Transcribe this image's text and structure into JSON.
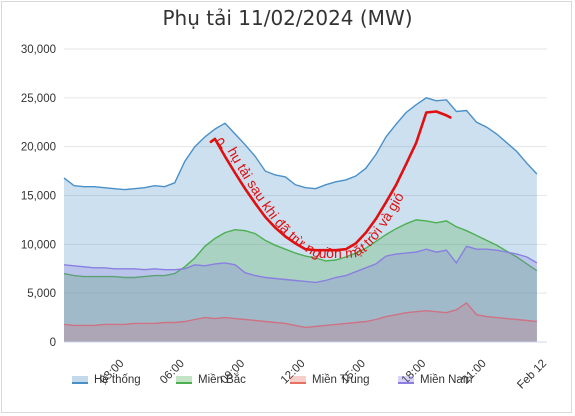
{
  "chart_data": {
    "type": "area",
    "title": "Phụ tải 11/02/2024 (MW)",
    "xlabel": "",
    "ylabel": "",
    "ylim": [
      0,
      30000
    ],
    "y_ticks": [
      "0",
      "5,000",
      "10,000",
      "15,000",
      "20,000",
      "25,000",
      "30,000"
    ],
    "x_ticks": [
      "03:00",
      "06:00",
      "09:00",
      "12:00",
      "15:00",
      "18:00",
      "21:00",
      "Feb 12"
    ],
    "x_tick_hours": [
      3,
      6,
      9,
      12,
      15,
      18,
      21,
      24
    ],
    "x_range_hours": [
      0,
      24
    ],
    "x_hours": [
      0,
      0.5,
      1,
      1.5,
      2,
      2.5,
      3,
      3.5,
      4,
      4.5,
      5,
      5.5,
      6,
      6.5,
      7,
      7.5,
      8,
      8.5,
      9,
      9.5,
      10,
      10.5,
      11,
      11.5,
      12,
      12.5,
      13,
      13.5,
      14,
      14.5,
      15,
      15.5,
      16,
      16.5,
      17,
      17.5,
      18,
      18.5,
      19,
      19.5,
      20,
      20.5,
      21,
      21.5,
      22,
      22.5,
      23,
      23.5
    ],
    "series": [
      {
        "name": "Hệ thống",
        "color": "#4a90c8",
        "values": [
          16800,
          16000,
          15900,
          15900,
          15800,
          15700,
          15600,
          15700,
          15800,
          16000,
          15900,
          16300,
          18500,
          20000,
          21000,
          21800,
          22400,
          21300,
          20200,
          19000,
          17500,
          17100,
          16900,
          16100,
          15800,
          15700,
          16100,
          16400,
          16600,
          17000,
          17800,
          19200,
          21000,
          22300,
          23500,
          24300,
          25000,
          24700,
          24800,
          23600,
          23700,
          22500,
          22000,
          21300,
          20400,
          19500,
          18300,
          17200
        ]
      },
      {
        "name": "Miền Bắc",
        "color": "#4caf50",
        "values": [
          7000,
          6800,
          6700,
          6700,
          6700,
          6700,
          6600,
          6600,
          6700,
          6800,
          6800,
          7000,
          7700,
          8600,
          9800,
          10600,
          11200,
          11500,
          11400,
          11100,
          10400,
          9900,
          9500,
          9100,
          8800,
          8600,
          8300,
          8400,
          8700,
          9100,
          9600,
          10300,
          11000,
          11600,
          12100,
          12500,
          12400,
          12200,
          12400,
          11800,
          11400,
          10900,
          10400,
          9900,
          9300,
          8700,
          8000,
          7300
        ]
      },
      {
        "name": "Miền Trung",
        "color": "#e87060",
        "values": [
          1800,
          1700,
          1700,
          1700,
          1800,
          1800,
          1800,
          1900,
          1900,
          1900,
          2000,
          2000,
          2100,
          2300,
          2500,
          2400,
          2500,
          2400,
          2300,
          2200,
          2100,
          2000,
          1900,
          1700,
          1500,
          1600,
          1700,
          1800,
          1900,
          2000,
          2100,
          2300,
          2600,
          2800,
          3000,
          3100,
          3200,
          3100,
          3000,
          3300,
          4000,
          2800,
          2600,
          2500,
          2400,
          2300,
          2200,
          2100
        ]
      },
      {
        "name": "Miền Nam",
        "color": "#8a7fe0",
        "values": [
          7900,
          7800,
          7700,
          7600,
          7600,
          7500,
          7500,
          7500,
          7400,
          7500,
          7400,
          7400,
          7500,
          7900,
          7800,
          8000,
          8100,
          7900,
          7100,
          6800,
          6600,
          6500,
          6400,
          6300,
          6200,
          6100,
          6300,
          6600,
          6800,
          7200,
          7600,
          8000,
          8800,
          9000,
          9100,
          9200,
          9500,
          9200,
          9400,
          8100,
          9800,
          9500,
          9500,
          9400,
          9200,
          9000,
          8700,
          8100
        ]
      }
    ],
    "legend_position": "bottom",
    "grid": {
      "horizontal": true,
      "vertical": false
    },
    "annotation": {
      "text": "Phụ tải sau khi đã trừ nguồn mặt trời và gió",
      "color": "#e01010",
      "x_hours": [
        7.3,
        7.5,
        8,
        8.5,
        9,
        9.5,
        10,
        10.5,
        11,
        11.5,
        12,
        12.5,
        13,
        13.5,
        14,
        14.5,
        15,
        15.5,
        16,
        16.5,
        17,
        17.5,
        18,
        18.5,
        19,
        19.2
      ],
      "values": [
        20500,
        20800,
        19000,
        17300,
        15700,
        14200,
        12800,
        11700,
        10800,
        10100,
        9500,
        9400,
        9400,
        9400,
        9500,
        10100,
        11200,
        12600,
        14300,
        16100,
        18200,
        20400,
        23500,
        23600,
        23200,
        23000
      ]
    }
  }
}
